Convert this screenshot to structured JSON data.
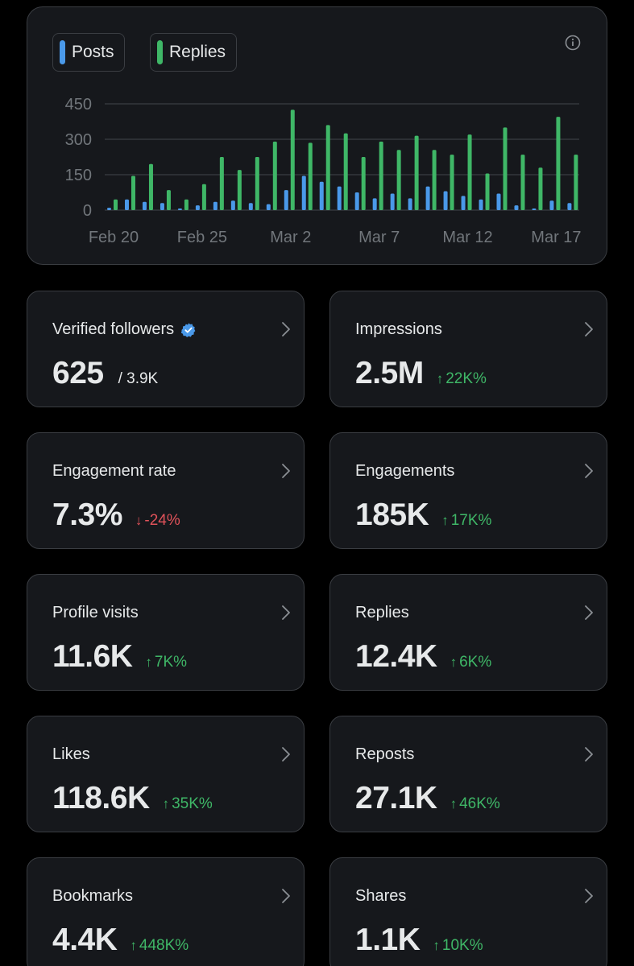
{
  "chart_data": {
    "type": "bar",
    "legend": [
      {
        "name": "Posts",
        "color": "#4a99e9"
      },
      {
        "name": "Replies",
        "color": "#3fb767"
      }
    ],
    "x_ticks": [
      "Feb 20",
      "Feb 25",
      "Mar 2",
      "Mar 7",
      "Mar 12",
      "Mar 17"
    ],
    "y_ticks": [
      "450",
      "300",
      "150",
      "0"
    ],
    "ylim": [
      0,
      450
    ],
    "categories": [
      "Feb 20",
      "Feb 21",
      "Feb 22",
      "Feb 23",
      "Feb 24",
      "Feb 25",
      "Feb 26",
      "Feb 27",
      "Feb 28",
      "Mar 1",
      "Mar 2",
      "Mar 3",
      "Mar 4",
      "Mar 5",
      "Mar 6",
      "Mar 7",
      "Mar 8",
      "Mar 9",
      "Mar 10",
      "Mar 11",
      "Mar 12",
      "Mar 13",
      "Mar 14",
      "Mar 15",
      "Mar 16",
      "Mar 17",
      "Mar 18"
    ],
    "series": [
      {
        "name": "Posts",
        "values": [
          10,
          45,
          35,
          30,
          5,
          20,
          35,
          40,
          30,
          25,
          85,
          145,
          120,
          100,
          75,
          50,
          70,
          50,
          100,
          80,
          60,
          45,
          70,
          20,
          5,
          40,
          30
        ]
      },
      {
        "name": "Replies",
        "values": [
          45,
          145,
          195,
          85,
          45,
          110,
          225,
          170,
          225,
          290,
          425,
          285,
          360,
          325,
          225,
          290,
          255,
          315,
          255,
          235,
          320,
          155,
          350,
          235,
          180,
          395,
          235
        ]
      }
    ],
    "grid": true
  },
  "stats": [
    {
      "label": "Verified followers",
      "value": "625",
      "sub": "/ 3.9K",
      "verified": true
    },
    {
      "label": "Impressions",
      "value": "2.5M",
      "arrow": "↑",
      "change": "22K%",
      "dir": "up"
    },
    {
      "label": "Engagement rate",
      "value": "7.3%",
      "arrow": "↓",
      "change": "-24%",
      "dir": "down"
    },
    {
      "label": "Engagements",
      "value": "185K",
      "arrow": "↑",
      "change": "17K%",
      "dir": "up"
    },
    {
      "label": "Profile visits",
      "value": "11.6K",
      "arrow": "↑",
      "change": "7K%",
      "dir": "up"
    },
    {
      "label": "Replies",
      "value": "12.4K",
      "arrow": "↑",
      "change": "6K%",
      "dir": "up"
    },
    {
      "label": "Likes",
      "value": "118.6K",
      "arrow": "↑",
      "change": "35K%",
      "dir": "up"
    },
    {
      "label": "Reposts",
      "value": "27.1K",
      "arrow": "↑",
      "change": "46K%",
      "dir": "up"
    },
    {
      "label": "Bookmarks",
      "value": "4.4K",
      "arrow": "↑",
      "change": "448K%",
      "dir": "up"
    },
    {
      "label": "Shares",
      "value": "1.1K",
      "arrow": "↑",
      "change": "10K%",
      "dir": "up"
    }
  ]
}
